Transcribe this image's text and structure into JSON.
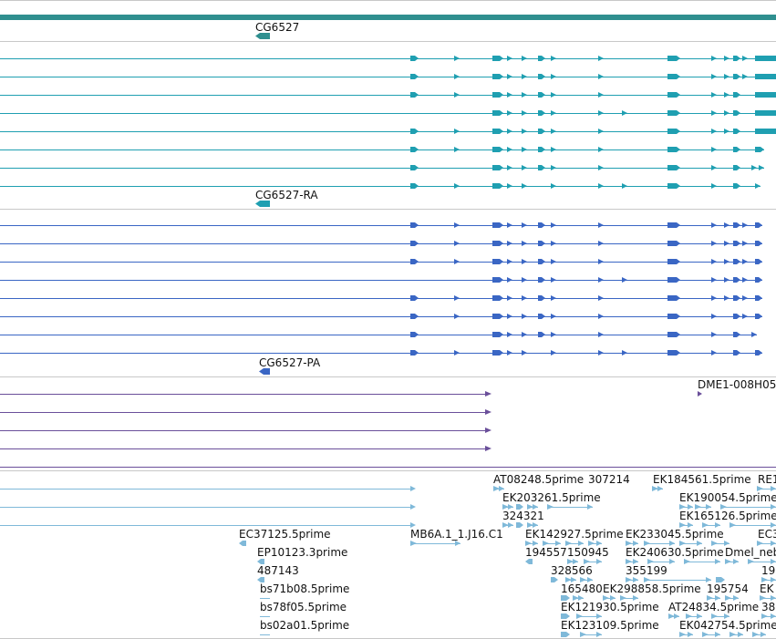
{
  "colors": {
    "gene": "#2f8f8f",
    "rna": "#1f9fb1",
    "protein": "#3a66c4",
    "purple": "#6a4f9a",
    "est": "#7fb9d9",
    "separator": "#c8c8c8",
    "text": "#111111"
  },
  "tracks": {
    "gene": {
      "label": "CG6527"
    },
    "transcripts": {
      "label": "CG6527-RA"
    },
    "proteins": {
      "label": "CG6527-PA"
    },
    "matches": {
      "label": "DME1-008H05"
    },
    "ests": {
      "labels": {
        "AT08248": "AT08248.5prime",
        "n307214": "307214",
        "EK184561": "EK184561.5prime",
        "RE1": "RE1",
        "EK203261": "EK203261.5prime",
        "EK190054": "EK190054.5prime",
        "n324321": "324321",
        "EK165126": "EK165126.5prime",
        "EC37125": "EC37125.5prime",
        "MB6A": "MB6A.1_1.J16.C1",
        "EK142927": "EK142927.5prime",
        "EK233045": "EK233045.5prime",
        "EC3": "EC3",
        "EP10123": "EP10123.3prime",
        "n194557": "194557",
        "n150945": "150945",
        "EK240630": "EK240630.5prime",
        "Dmel_neb": "Dmel_neb",
        "n487143": "487143",
        "n328566": "328566",
        "n355199": "355199",
        "n19": "19",
        "bs71b08": "bs71b08.5prime",
        "n165480": "165480",
        "EK298858": "EK298858.5prime",
        "n195754": "195754",
        "EK_partial": "EK",
        "bs78f05": "bs78f05.5prime",
        "EK121930": "EK121930.5prime",
        "AT24834": "AT24834.5prime",
        "n38": "38",
        "bs02a01": "bs02a01.5prime",
        "EK123109": "EK123109.5prime",
        "EK042754": "EK042754.5prime"
      }
    }
  }
}
